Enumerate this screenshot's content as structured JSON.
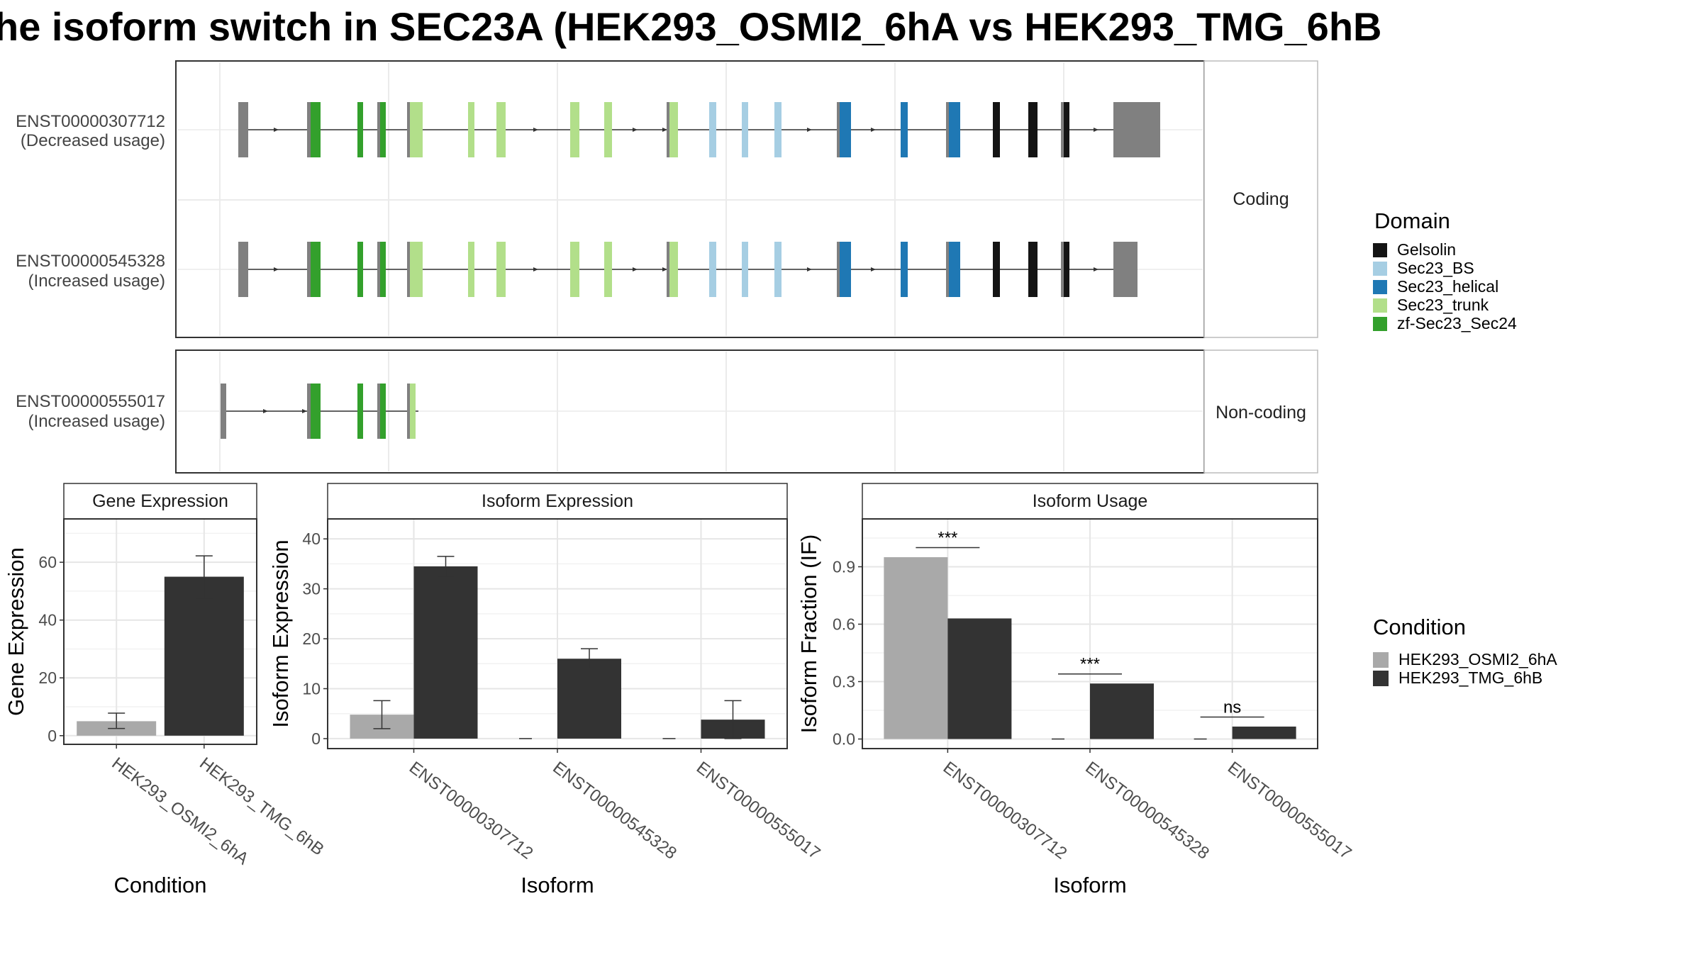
{
  "title": "he isoform switch in SEC23A (HEK293_OSMI2_6hA vs HEK293_TMG_6hB",
  "colors": {
    "exon": "#808080",
    "Gelsolin": "#141414",
    "Sec23_BS": "#a6cee3",
    "Sec23_helical": "#1f78b4",
    "Sec23_trunk": "#b2df8a",
    "zf-Sec23_Sec24": "#33a02c",
    "condA": "#a9a9a9",
    "condB": "#333333"
  },
  "structure": {
    "facets": [
      "Coding",
      "Non-coding"
    ],
    "transcripts": [
      {
        "id": "ENST00000307712",
        "usage": "(Decreased usage)",
        "facet": "Coding"
      },
      {
        "id": "ENST00000545328",
        "usage": "(Increased usage)",
        "facet": "Coding"
      },
      {
        "id": "ENST00000555017",
        "usage": "(Increased usage)",
        "facet": "Non-coding"
      }
    ]
  },
  "legend_domain": {
    "title": "Domain",
    "items": [
      "Gelsolin",
      "Sec23_BS",
      "Sec23_helical",
      "Sec23_trunk",
      "zf-Sec23_Sec24"
    ]
  },
  "legend_condition": {
    "title": "Condition",
    "items": [
      "HEK293_OSMI2_6hA",
      "HEK293_TMG_6hB"
    ]
  },
  "chart_data": [
    {
      "type": "bar",
      "title": "Gene Expression",
      "xlabel": "Condition",
      "ylabel": "Gene Expression",
      "ylim": [
        -3,
        75
      ],
      "yticks": [
        0,
        20,
        40,
        60
      ],
      "categories": [
        "HEK293_OSMI2_6hA",
        "HEK293_TMG_6hB"
      ],
      "values": [
        5,
        55
      ],
      "errors": [
        [
          2.5,
          7.8
        ],
        [
          47.5,
          62.2
        ]
      ],
      "grid": true
    },
    {
      "type": "bar",
      "title": "Isoform Expression",
      "xlabel": "Isoform",
      "ylabel": "Isoform Expression",
      "ylim": [
        -2,
        44
      ],
      "yticks": [
        0,
        10,
        20,
        30,
        40
      ],
      "categories": [
        "ENST00000307712",
        "ENST00000545328",
        "ENST00000555017"
      ],
      "series": [
        {
          "name": "HEK293_OSMI2_6hA",
          "values": [
            4.8,
            0,
            0
          ],
          "errors": [
            [
              2,
              7.6
            ],
            null,
            null
          ]
        },
        {
          "name": "HEK293_TMG_6hB",
          "values": [
            34.5,
            16,
            3.8
          ],
          "errors": [
            [
              32.5,
              36.5
            ],
            [
              14,
              18
            ],
            [
              0,
              7.6
            ]
          ]
        }
      ],
      "grid": true
    },
    {
      "type": "bar",
      "title": "Isoform Usage",
      "xlabel": "Isoform",
      "ylabel": "Isoform Fraction (IF)",
      "ylim": [
        -0.05,
        1.15
      ],
      "yticks": [
        0.0,
        0.3,
        0.6,
        0.9
      ],
      "ytick_labels": [
        "0.0",
        "0.3",
        "0.6",
        "0.9"
      ],
      "categories": [
        "ENST00000307712",
        "ENST00000545328",
        "ENST00000555017"
      ],
      "series": [
        {
          "name": "HEK293_OSMI2_6hA",
          "values": [
            0.95,
            0,
            0
          ]
        },
        {
          "name": "HEK293_TMG_6hB",
          "values": [
            0.63,
            0.29,
            0.065
          ]
        }
      ],
      "significance": [
        {
          "label": "***",
          "y": 1.0
        },
        {
          "label": "***",
          "y": 0.34
        },
        {
          "label": "ns",
          "y": 0.115
        }
      ],
      "grid": true
    }
  ]
}
